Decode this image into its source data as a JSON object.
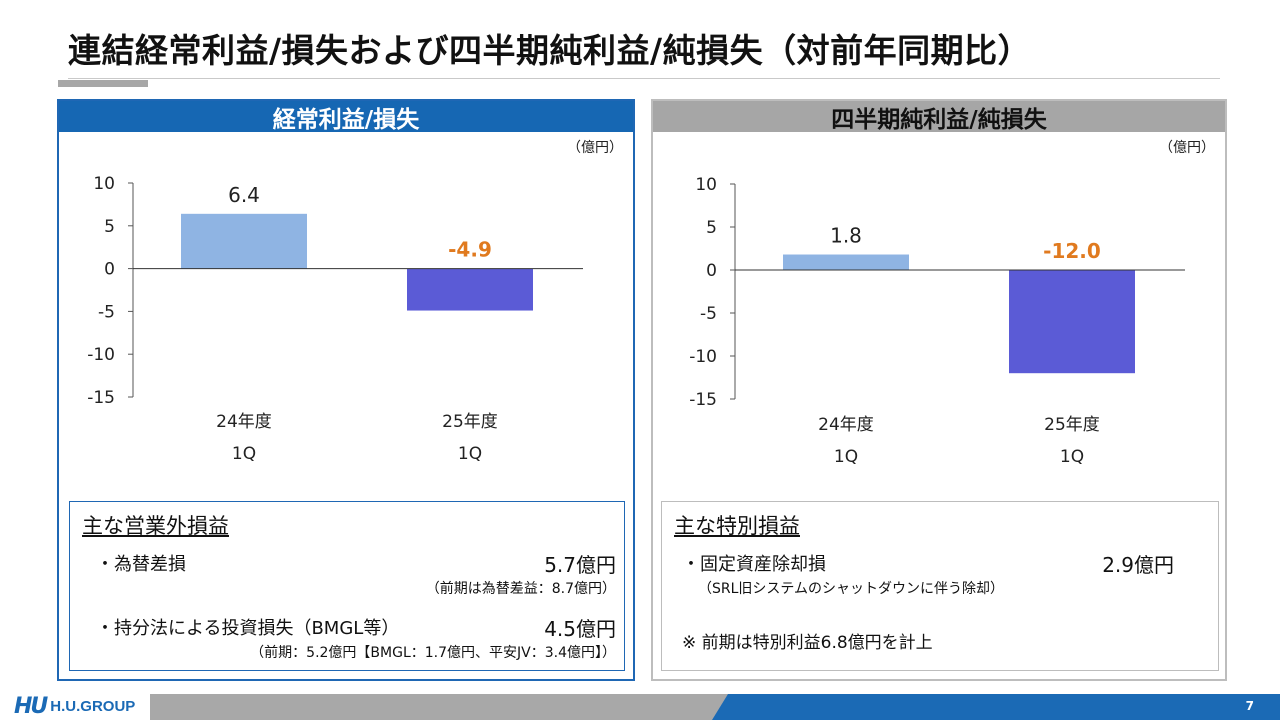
{
  "title": "連結経常利益/損失および四半期純利益/純損失（対前年同期比）",
  "unit_label": "（億円）",
  "left_panel": {
    "header": "経常利益/損失",
    "notes_heading": "主な営業外損益",
    "items": [
      {
        "label": "・為替差損",
        "value": "5.7億円",
        "sub": "（前期は為替差益：8.7億円）"
      },
      {
        "label": "・持分法による投資損失（BMGL等）",
        "value": "4.5億円",
        "sub": "（前期：5.2億円【BMGL：1.7億円、平安JV：3.4億円】）"
      }
    ]
  },
  "right_panel": {
    "header": "四半期純利益/純損失",
    "notes_heading": "主な特別損益",
    "item": {
      "label": "・固定資産除却損",
      "value": "2.9億円",
      "sub": "（SRL旧システムのシャットダウンに伴う除却）"
    },
    "remark": "※ 前期は特別利益6.8億円を計上"
  },
  "chart_data": [
    {
      "type": "bar",
      "categories": [
        [
          "24年度",
          "1Q"
        ],
        [
          "25年度",
          "1Q"
        ]
      ],
      "values": [
        6.4,
        -4.9
      ],
      "value_labels": [
        "6.4",
        "-4.9"
      ],
      "colors": [
        "#8fb4e3",
        "#5b5bd6"
      ],
      "label_colors": [
        "#222222",
        "#e07a1f"
      ],
      "yticks": [
        "10",
        "5",
        "0",
        "-5",
        "-10",
        "-15"
      ],
      "ylim": [
        -15,
        10
      ]
    },
    {
      "type": "bar",
      "categories": [
        [
          "24年度",
          "1Q"
        ],
        [
          "25年度",
          "1Q"
        ]
      ],
      "values": [
        1.8,
        -12.0
      ],
      "value_labels": [
        "1.8",
        "-12.0"
      ],
      "colors": [
        "#8fb4e3",
        "#5b5bd6"
      ],
      "label_colors": [
        "#222222",
        "#e07a1f"
      ],
      "yticks": [
        "10",
        "5",
        "0",
        "-5",
        "-10",
        "-15"
      ],
      "ylim": [
        -15,
        10
      ]
    }
  ],
  "footer": {
    "logo_mark": "HU",
    "logo_text": "H.U.GROUP",
    "page_number": "7"
  }
}
